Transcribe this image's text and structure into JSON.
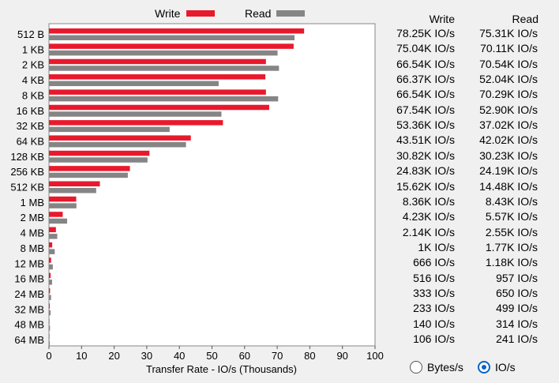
{
  "legend": {
    "write_label": "Write",
    "read_label": "Read",
    "write_color": "#e8192c",
    "read_color": "#858585"
  },
  "table": {
    "write_header": "Write",
    "read_header": "Read",
    "rows": [
      {
        "write": "78.25K IO/s",
        "read": "75.31K IO/s"
      },
      {
        "write": "75.04K IO/s",
        "read": "70.11K IO/s"
      },
      {
        "write": "66.54K IO/s",
        "read": "70.54K IO/s"
      },
      {
        "write": "66.37K IO/s",
        "read": "52.04K IO/s"
      },
      {
        "write": "66.54K IO/s",
        "read": "70.29K IO/s"
      },
      {
        "write": "67.54K IO/s",
        "read": "52.90K IO/s"
      },
      {
        "write": "53.36K IO/s",
        "read": "37.02K IO/s"
      },
      {
        "write": "43.51K IO/s",
        "read": "42.02K IO/s"
      },
      {
        "write": "30.82K IO/s",
        "read": "30.23K IO/s"
      },
      {
        "write": "24.83K IO/s",
        "read": "24.19K IO/s"
      },
      {
        "write": "15.62K IO/s",
        "read": "14.48K IO/s"
      },
      {
        "write": "8.36K IO/s",
        "read": "8.43K IO/s"
      },
      {
        "write": "4.23K IO/s",
        "read": "5.57K IO/s"
      },
      {
        "write": "2.14K IO/s",
        "read": "2.55K IO/s"
      },
      {
        "write": "1K IO/s",
        "read": "1.77K IO/s"
      },
      {
        "write": "666 IO/s",
        "read": "1.18K IO/s"
      },
      {
        "write": "516 IO/s",
        "read": "957 IO/s"
      },
      {
        "write": "333 IO/s",
        "read": "650 IO/s"
      },
      {
        "write": "233 IO/s",
        "read": "499 IO/s"
      },
      {
        "write": "140 IO/s",
        "read": "314 IO/s"
      },
      {
        "write": "106 IO/s",
        "read": "241 IO/s"
      }
    ]
  },
  "units": {
    "bytes_label": "Bytes/s",
    "ios_label": "IO/s",
    "selected": "IO/s"
  },
  "chart_data": {
    "type": "bar",
    "orientation": "horizontal",
    "categories": [
      "512 B",
      "1 KB",
      "2 KB",
      "4 KB",
      "8 KB",
      "16 KB",
      "32 KB",
      "64 KB",
      "128 KB",
      "256 KB",
      "512 KB",
      "1 MB",
      "2 MB",
      "4 MB",
      "8 MB",
      "12 MB",
      "16 MB",
      "24 MB",
      "32 MB",
      "48 MB",
      "64 MB"
    ],
    "series": [
      {
        "name": "Write",
        "color": "#e8192c",
        "values": [
          78.25,
          75.04,
          66.54,
          66.37,
          66.54,
          67.54,
          53.36,
          43.51,
          30.82,
          24.83,
          15.62,
          8.36,
          4.23,
          2.14,
          1.0,
          0.666,
          0.516,
          0.333,
          0.233,
          0.14,
          0.106
        ]
      },
      {
        "name": "Read",
        "color": "#858585",
        "values": [
          75.31,
          70.11,
          70.54,
          52.04,
          70.29,
          52.9,
          37.02,
          42.02,
          30.23,
          24.19,
          14.48,
          8.43,
          5.57,
          2.55,
          1.77,
          1.18,
          0.957,
          0.65,
          0.499,
          0.314,
          0.241
        ]
      }
    ],
    "xlabel": "Transfer Rate - IO/s (Thousands)",
    "xlim": [
      0,
      100
    ],
    "xticks": [
      0,
      10,
      20,
      30,
      40,
      50,
      60,
      70,
      80,
      90,
      100
    ],
    "grid": false,
    "legend": "top"
  }
}
